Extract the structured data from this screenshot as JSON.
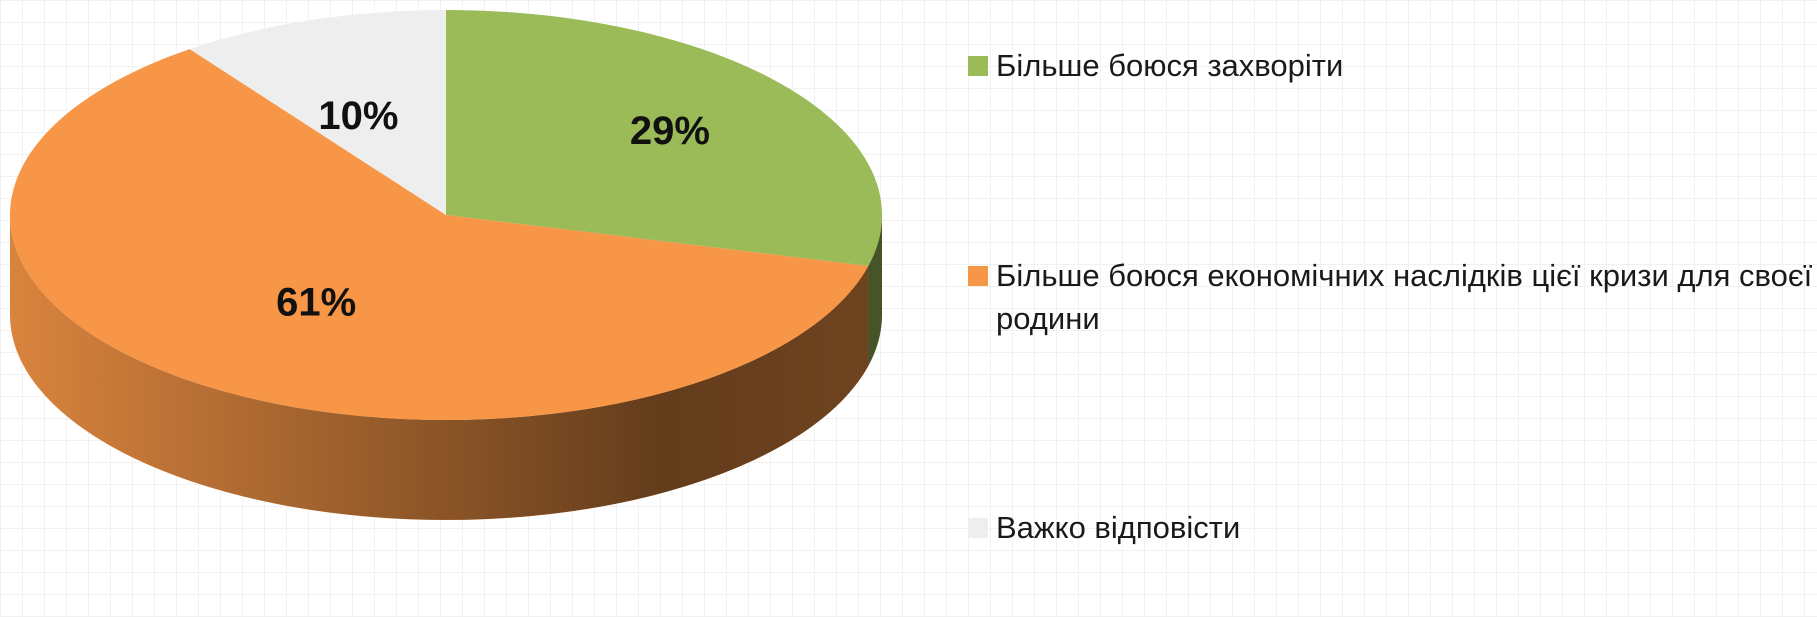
{
  "chart_data": {
    "type": "pie",
    "categories": [
      "Більше боюся захворіти",
      "Більше боюся економічних наслідків цієї кризи для своєї родини",
      "Важко відповісти"
    ],
    "values": [
      29,
      61,
      10
    ],
    "value_labels": [
      "29%",
      "61%",
      "10%"
    ],
    "colors": [
      "#9bbb59",
      "#f79646",
      "#eeeeee"
    ],
    "legend": "right"
  }
}
